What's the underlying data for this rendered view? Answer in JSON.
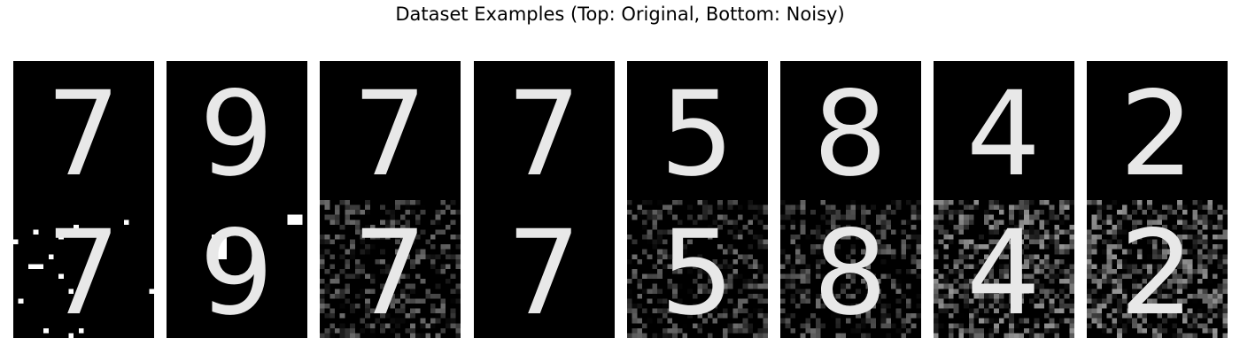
{
  "title": "Dataset Examples (Top: Original, Bottom: Noisy)",
  "examples": [
    {
      "digit": "7",
      "noise": "salt"
    },
    {
      "digit": "9",
      "noise": "blocks"
    },
    {
      "digit": "7",
      "noise": "gaussian"
    },
    {
      "digit": "7",
      "noise": "none"
    },
    {
      "digit": "5",
      "noise": "gaussian"
    },
    {
      "digit": "8",
      "noise": "gaussian"
    },
    {
      "digit": "4",
      "noise": "heavy"
    },
    {
      "digit": "2",
      "noise": "heavy"
    }
  ]
}
